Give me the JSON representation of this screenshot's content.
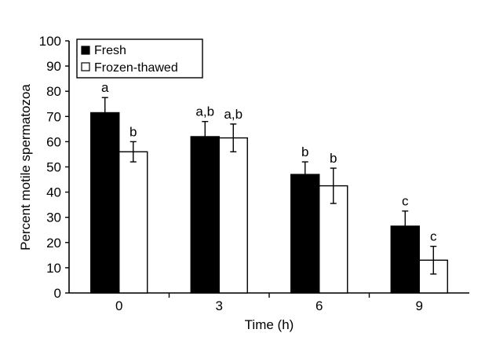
{
  "chart_data": {
    "type": "bar",
    "xlabel": "Time (h)",
    "ylabel": "Percent motile spermatozoa",
    "ylim": [
      0,
      100
    ],
    "yticks": [
      0,
      10,
      20,
      30,
      40,
      50,
      60,
      70,
      80,
      90,
      100
    ],
    "categories": [
      "0",
      "3",
      "6",
      "9"
    ],
    "legend_position": "top-left",
    "grid": false,
    "series": [
      {
        "name": "Fresh",
        "color": "#000000",
        "values": [
          71.5,
          62,
          47,
          26.5
        ],
        "errors": [
          6,
          6,
          5,
          6
        ],
        "labels": [
          "a",
          "a,b",
          "b",
          "c"
        ]
      },
      {
        "name": "Frozen-thawed",
        "color": "#ffffff",
        "values": [
          56,
          61.5,
          42.5,
          13
        ],
        "errors": [
          4,
          5.5,
          7,
          5.5
        ],
        "labels": [
          "b",
          "a,b",
          "b",
          "c"
        ]
      }
    ]
  }
}
